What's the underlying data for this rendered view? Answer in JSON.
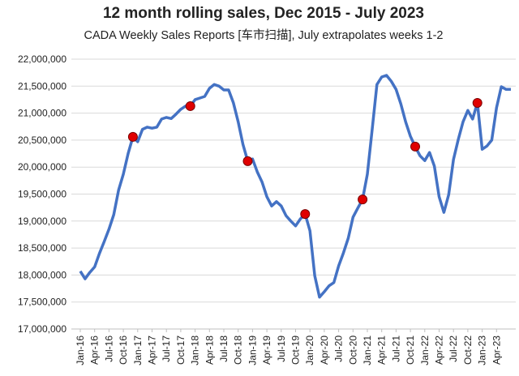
{
  "chart_data": {
    "type": "line",
    "title": "12 month rolling sales, Dec 2015 - July 2023",
    "subtitle": "CADA Weekly Sales Reports [车市扫描], July extrapolates weeks 1-2",
    "categories": [
      "Jan-16",
      null,
      null,
      "Apr-16",
      null,
      null,
      "Jul-16",
      null,
      null,
      "Oct-16",
      null,
      null,
      "Jan-17",
      null,
      null,
      "Apr-17",
      null,
      null,
      "Jul-17",
      null,
      null,
      "Oct-17",
      null,
      null,
      "Jan-18",
      null,
      null,
      "Apr-18",
      null,
      null,
      "Jul-18",
      null,
      null,
      "Oct-18",
      null,
      null,
      "Jan-19",
      null,
      null,
      "Apr-19",
      null,
      null,
      "Jul-19",
      null,
      null,
      "Oct-19",
      null,
      null,
      "Jan-20",
      null,
      null,
      "Apr-20",
      null,
      null,
      "Jul-20",
      null,
      null,
      "Oct-20",
      null,
      null,
      "Jan-21",
      null,
      null,
      "Apr-21",
      null,
      null,
      "Jul-21",
      null,
      null,
      "Oct-21",
      null,
      null,
      "Jan-22",
      null,
      null,
      "Apr-22",
      null,
      null,
      "Jul-22",
      null,
      null,
      "Oct-22",
      null,
      null,
      "Jan-23",
      null,
      null,
      "Apr-23",
      null,
      null,
      null
    ],
    "values": [
      18070000,
      17930000,
      18050000,
      18150000,
      18400000,
      18620000,
      18850000,
      19120000,
      19570000,
      19870000,
      20250000,
      20560000,
      20470000,
      20700000,
      20740000,
      20720000,
      20740000,
      20890000,
      20920000,
      20900000,
      20980000,
      21070000,
      21130000,
      21130000,
      21250000,
      21280000,
      21310000,
      21460000,
      21530000,
      21500000,
      21430000,
      21430000,
      21190000,
      20840000,
      20420000,
      20110000,
      20150000,
      19910000,
      19720000,
      19450000,
      19280000,
      19360000,
      19280000,
      19100000,
      19000000,
      18910000,
      19040000,
      19130000,
      18820000,
      17990000,
      17590000,
      17690000,
      17800000,
      17860000,
      18170000,
      18410000,
      18680000,
      19070000,
      19240000,
      19400000,
      19870000,
      20690000,
      21530000,
      21670000,
      21700000,
      21590000,
      21440000,
      21170000,
      20840000,
      20570000,
      20380000,
      20210000,
      20120000,
      20270000,
      20020000,
      19450000,
      19160000,
      19490000,
      20140000,
      20510000,
      20840000,
      21050000,
      20890000,
      21190000,
      20330000,
      20390000,
      20500000,
      21100000,
      21490000,
      21440000,
      21440000
    ],
    "color": "#4472c4",
    "highlight": [
      11,
      23,
      35,
      47,
      59,
      70,
      83
    ],
    "highlight_color": "#e00000",
    "ylim": [
      17000000,
      22000000
    ],
    "yticks": [
      {
        "value": 17000000,
        "label": "17,000,000"
      },
      {
        "value": 17500000,
        "label": "17,500,000"
      },
      {
        "value": 18000000,
        "label": "18,000,000"
      },
      {
        "value": 18500000,
        "label": "18,500,000"
      },
      {
        "value": 19000000,
        "label": "19,000,000"
      },
      {
        "value": 19500000,
        "label": "19,500,000"
      },
      {
        "value": 20000000,
        "label": "20,000,000"
      },
      {
        "value": 20500000,
        "label": "20,500,000"
      },
      {
        "value": 21000000,
        "label": "21,000,000"
      },
      {
        "value": 21500000,
        "label": "21,500,000"
      },
      {
        "value": 22000000,
        "label": "22,000,000"
      }
    ],
    "grid": true
  }
}
